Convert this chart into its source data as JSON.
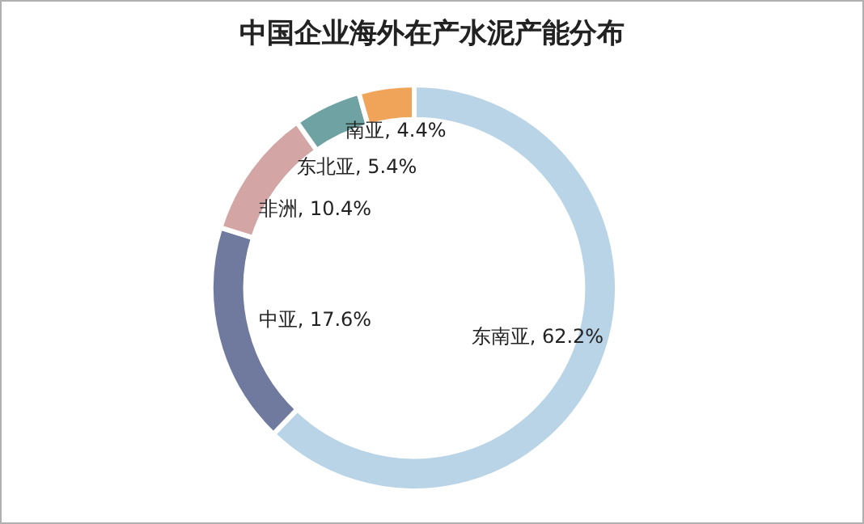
{
  "chart_data": {
    "type": "donut",
    "title": "中国企业海外在产水泥产能分布",
    "categories": [
      "东南亚",
      "中亚",
      "非洲",
      "东北亚",
      "南亚"
    ],
    "values": [
      62.2,
      17.6,
      10.4,
      5.4,
      4.4
    ],
    "colors": [
      "#b8d4e6",
      "#6f7a9e",
      "#d4a5a5",
      "#6fa3a3",
      "#f0a45a"
    ],
    "value_labels": [
      "62.2%",
      "17.6%",
      "10.4%",
      "5.4%",
      "4.4%"
    ],
    "legend": false
  }
}
